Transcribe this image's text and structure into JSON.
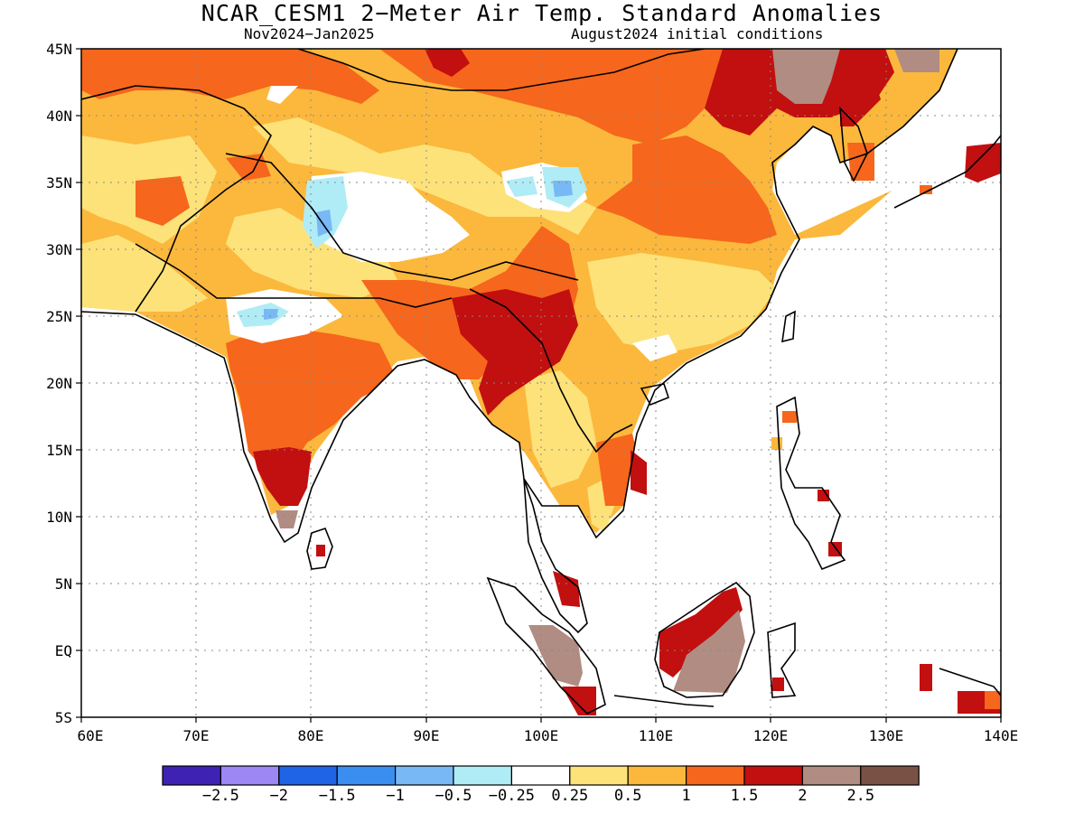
{
  "title": "NCAR_CESM1 2−Meter Air Temp. Standard Anomalies",
  "subtitle_left": "Nov2024−Jan2025",
  "subtitle_right": "August2024 initial conditions",
  "lat_labels": [
    "45N",
    "40N",
    "35N",
    "30N",
    "25N",
    "20N",
    "15N",
    "10N",
    "5N",
    "EQ",
    "5S"
  ],
  "lon_labels": [
    "60E",
    "70E",
    "80E",
    "90E",
    "100E",
    "110E",
    "120E",
    "130E",
    "140E"
  ],
  "colorbar": {
    "colors": [
      "#3d22b4",
      "#9c87f5",
      "#1f64e6",
      "#3a8ef0",
      "#78b8f5",
      "#b0ecf6",
      "#ffffff",
      "#fde27a",
      "#fbb83c",
      "#f6661c",
      "#c20f0f",
      "#b18c82",
      "#7a5145"
    ],
    "labels": [
      "−2.5",
      "−2",
      "−1.5",
      "−1",
      "−0.5",
      "−0.25",
      "0.25",
      "0.5",
      "1",
      "1.5",
      "2",
      "2.5"
    ]
  }
}
